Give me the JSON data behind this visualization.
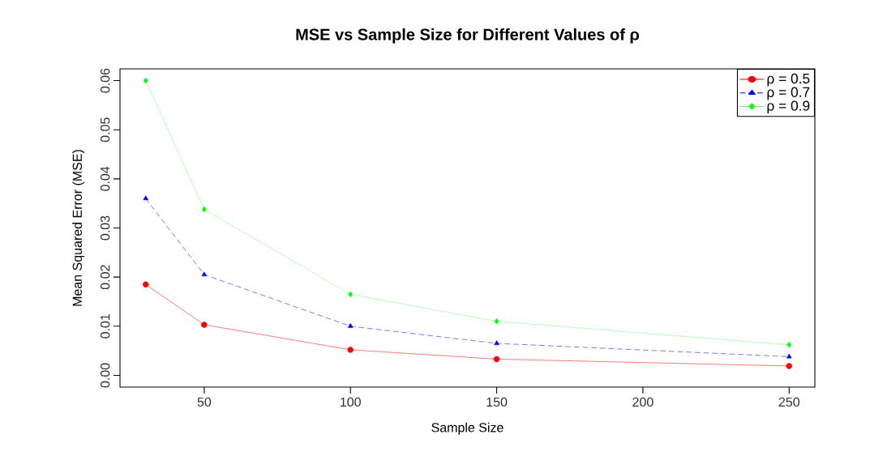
{
  "chart_data": {
    "type": "line",
    "title": "**MSE vs Sample Size for Different Values of ρ**",
    "xlabel": "Sample Size",
    "ylabel": "Mean Squared Error (MSE)",
    "x": [
      30,
      50,
      100,
      150,
      250
    ],
    "series": [
      {
        "name": "ρ = 0.5",
        "color": "#ff0000",
        "marker": "circle",
        "line_style": "solid",
        "values": [
          0.0185,
          0.0103,
          0.0052,
          0.0033,
          0.0019
        ]
      },
      {
        "name": "ρ = 0.7",
        "color": "#0000ff",
        "marker": "triangle",
        "line_style": "dashed",
        "values": [
          0.036,
          0.0205,
          0.01,
          0.0065,
          0.0038
        ]
      },
      {
        "name": "ρ = 0.9",
        "color": "#00ff00",
        "marker": "diamond",
        "line_style": "dotted",
        "values": [
          0.06,
          0.0338,
          0.0165,
          0.011,
          0.0062
        ]
      }
    ],
    "xlim": [
      21.2,
      258.8
    ],
    "xticks": [
      50,
      100,
      150,
      200,
      250
    ],
    "ylim": [
      -0.0024,
      0.0624
    ],
    "yticks": [
      {
        "value": 0,
        "label": "0.00"
      },
      {
        "value": 0.01,
        "label": "0.01"
      },
      {
        "value": 0.02,
        "label": "0.02"
      },
      {
        "value": 0.03,
        "label": "0.03"
      },
      {
        "value": 0.04,
        "label": "0.04"
      },
      {
        "value": 0.05,
        "label": "0.05"
      },
      {
        "value": 0.06,
        "label": "0.06"
      }
    ],
    "grid": false,
    "legend": "top right"
  }
}
